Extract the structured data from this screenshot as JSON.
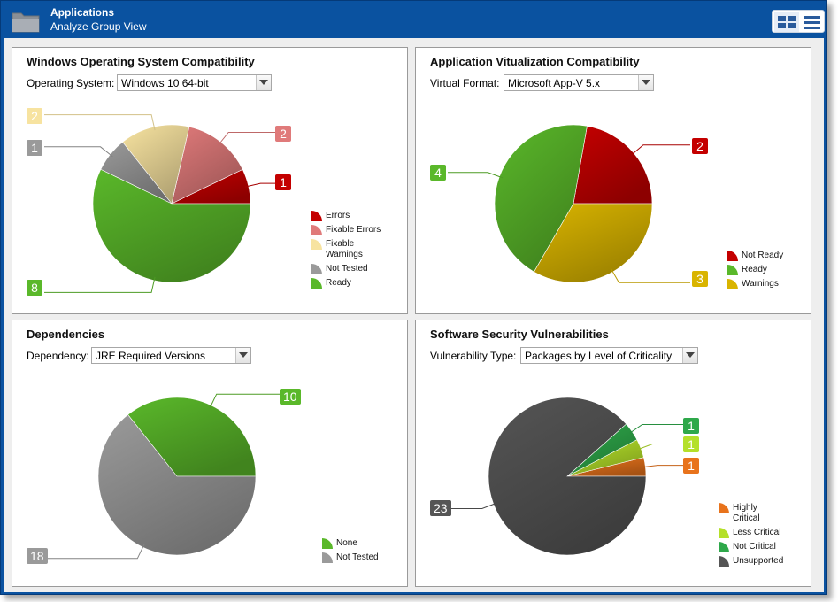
{
  "header": {
    "title": "Applications",
    "subtitle": "Analyze Group View",
    "icons": {
      "app": "folder-icon",
      "grid": "grid-view-icon",
      "list": "list-view-icon"
    }
  },
  "panels": {
    "windows": {
      "title": "Windows Operating System Compatibility",
      "filter_label": "Operating System:",
      "filter_value": "Windows 10 64-bit",
      "callouts": [
        "2",
        "2",
        "1",
        "1",
        "8"
      ]
    },
    "virtualization": {
      "title": "Application Vitualization Compatibility",
      "filter_label": "Virtual Format:",
      "filter_value": "Microsoft App-V 5.x",
      "callouts": [
        "2",
        "4",
        "3"
      ]
    },
    "dependencies": {
      "title": "Dependencies",
      "filter_label": "Dependency:",
      "filter_value": "JRE Required Versions",
      "callouts": [
        "10",
        "18"
      ]
    },
    "security": {
      "title": "Software Security Vulnerabilities",
      "filter_label": "Vulnerability Type:",
      "filter_value": "Packages by Level of Criticality",
      "callouts": [
        "1",
        "1",
        "1",
        "23"
      ]
    }
  },
  "chart_data": [
    {
      "type": "pie",
      "title": "Windows Operating System Compatibility",
      "categories": [
        "Errors",
        "Fixable Errors",
        "Fixable Warnings",
        "Not Tested",
        "Ready"
      ],
      "values": [
        1,
        2,
        2,
        1,
        8
      ],
      "colors": [
        "#c40000",
        "#e07a7a",
        "#f7e3a0",
        "#9a9a9a",
        "#5ab82a"
      ],
      "legend_labels": [
        "Errors",
        "Fixable Errors",
        "Fixable\nWarnings",
        "Not Tested",
        "Ready"
      ],
      "legend": "right"
    },
    {
      "type": "pie",
      "title": "Application Vitualization Compatibility",
      "categories": [
        "Not Ready",
        "Ready",
        "Warnings"
      ],
      "values": [
        2,
        4,
        3
      ],
      "colors": [
        "#c40000",
        "#5ab82a",
        "#d9b400"
      ],
      "legend_labels": [
        "Not Ready",
        "Ready",
        "Warnings"
      ],
      "legend": "right"
    },
    {
      "type": "pie",
      "title": "Dependencies",
      "categories": [
        "None",
        "Not Tested"
      ],
      "values": [
        10,
        18
      ],
      "colors": [
        "#5ab82a",
        "#9a9a9a"
      ],
      "legend_labels": [
        "None",
        "Not Tested"
      ],
      "legend": "right"
    },
    {
      "type": "pie",
      "title": "Software Security Vulnerabilities",
      "categories": [
        "Highly Critical",
        "Less Critical",
        "Not Critical",
        "Unsupported"
      ],
      "values": [
        1,
        1,
        1,
        23
      ],
      "colors": [
        "#e8731c",
        "#b4e02a",
        "#2ea84a",
        "#555555"
      ],
      "legend_labels": [
        "Highly\nCritical",
        "Less Critical",
        "Not Critical",
        "Unsupported"
      ],
      "legend": "right"
    }
  ]
}
